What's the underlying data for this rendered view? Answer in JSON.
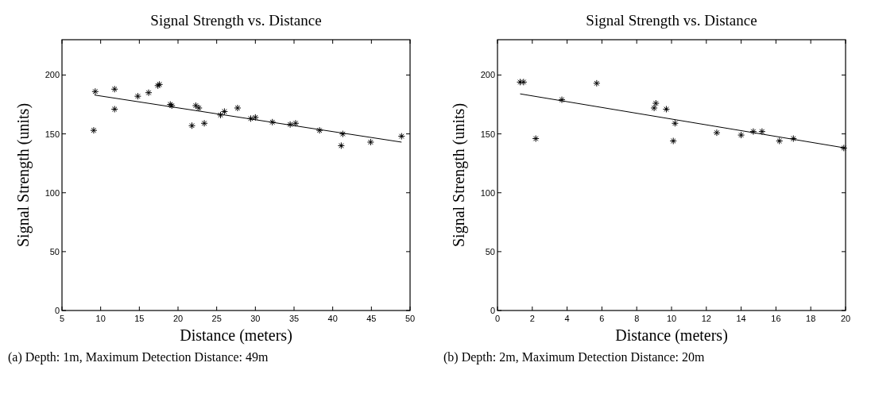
{
  "chart_data": [
    {
      "type": "scatter",
      "title": "Signal Strength vs. Distance",
      "xlabel": "Distance (meters)",
      "ylabel": "Signal Strength (units)",
      "annotations": [
        "(a) Depth: 1m, Maximum Detection Distance: 49m"
      ],
      "xlim": [
        5,
        50
      ],
      "xticks": [
        5,
        10,
        15,
        20,
        25,
        30,
        35,
        40,
        45,
        50
      ],
      "ylim": [
        0,
        230
      ],
      "yticks": [
        0,
        50,
        100,
        150,
        200
      ],
      "grid": false,
      "series": [
        {
          "type": "scatter",
          "marker": "cross",
          "color": "#000000",
          "x": [
            9.1,
            9.3,
            11.8,
            11.8,
            14.8,
            16.2,
            17.4,
            17.6,
            19.0,
            19.2,
            21.8,
            22.3,
            22.7,
            23.4,
            25.5,
            26.0,
            27.7,
            29.4,
            30.0,
            32.2,
            34.5,
            35.2,
            38.3,
            41.3,
            41.1,
            44.9,
            48.9
          ],
          "values": [
            153,
            186,
            188,
            171,
            182,
            185,
            191,
            192,
            175,
            174,
            157,
            174,
            172,
            159,
            166,
            169,
            172,
            163,
            164,
            160,
            158,
            159,
            153,
            150,
            140,
            143,
            148
          ]
        },
        {
          "type": "line",
          "marker": "none",
          "color": "#000000",
          "x": [
            9.2,
            48.9
          ],
          "values": [
            183,
            143
          ]
        }
      ]
    },
    {
      "type": "scatter",
      "title": "Signal Strength vs. Distance",
      "xlabel": "Distance (meters)",
      "ylabel": "Signal Strength (units)",
      "annotations": [
        "(b) Depth: 2m, Maximum Detection Distance: 20m"
      ],
      "xlim": [
        0,
        20
      ],
      "xticks": [
        0,
        2,
        4,
        6,
        8,
        10,
        12,
        14,
        16,
        18,
        20
      ],
      "ylim": [
        0,
        230
      ],
      "yticks": [
        0,
        50,
        100,
        150,
        200
      ],
      "grid": false,
      "series": [
        {
          "type": "scatter",
          "marker": "cross",
          "color": "#000000",
          "x": [
            1.3,
            1.5,
            2.2,
            3.7,
            5.7,
            9.0,
            9.1,
            9.7,
            10.1,
            10.2,
            12.6,
            14.0,
            14.7,
            15.2,
            16.2,
            17.0,
            19.9
          ],
          "values": [
            194,
            194,
            146,
            179,
            193,
            172,
            176,
            171,
            144,
            159,
            151,
            149,
            152,
            152,
            144,
            146,
            138
          ]
        },
        {
          "type": "line",
          "marker": "none",
          "color": "#000000",
          "x": [
            1.3,
            20
          ],
          "values": [
            184,
            138
          ]
        }
      ]
    }
  ]
}
